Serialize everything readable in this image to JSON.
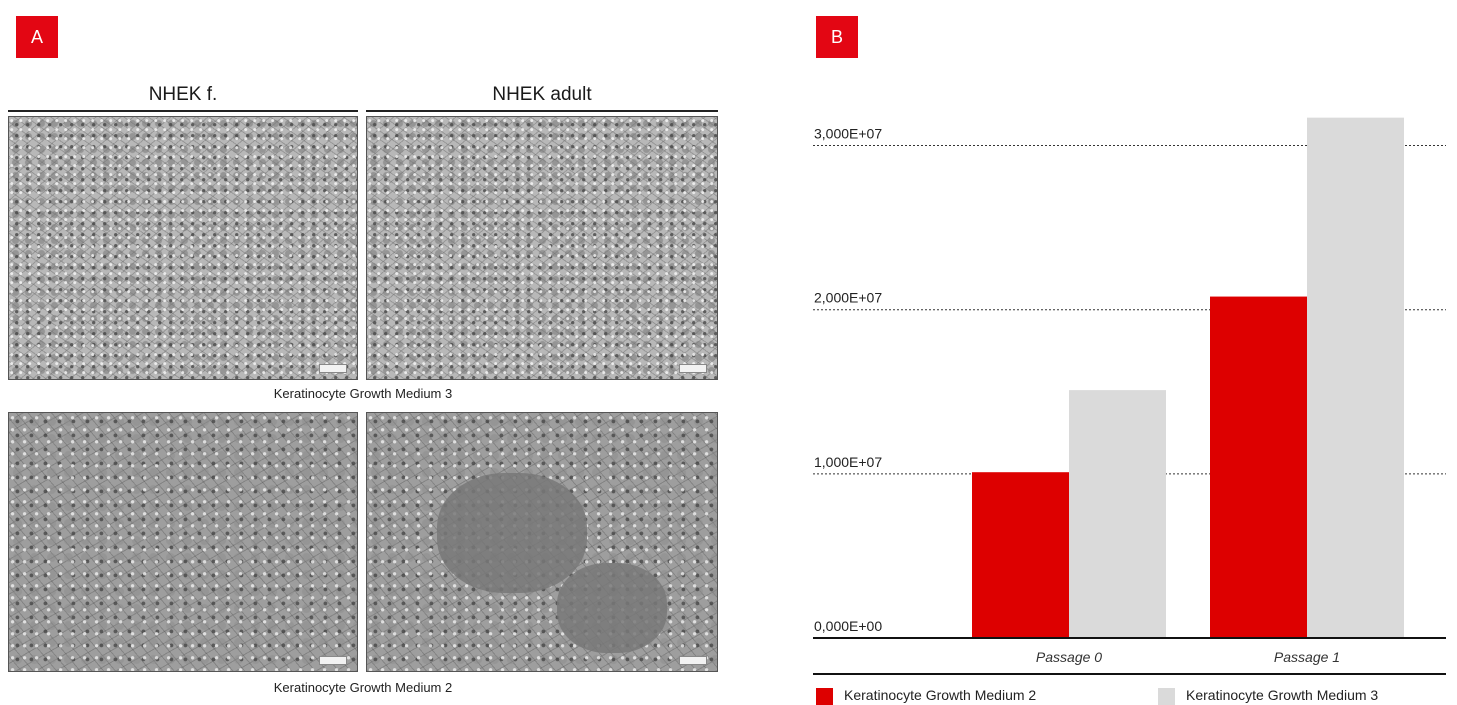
{
  "panel_a": {
    "label": "A",
    "columns": [
      "NHEK f.",
      "NHEK adult"
    ],
    "rows": [
      "Keratinocyte Growth Medium 3",
      "Keratinocyte Growth Medium 2"
    ]
  },
  "panel_b": {
    "label": "B"
  },
  "colors": {
    "accent": "#e30613",
    "series1": "#dd0000",
    "series2": "#dadada"
  },
  "chart_data": {
    "type": "bar",
    "title": "",
    "xlabel": "",
    "ylabel": "",
    "categories": [
      "Passage 0",
      "Passage 1"
    ],
    "series": [
      {
        "name": "Keratinocyte Growth Medium 2",
        "values": [
          10100000,
          20800000
        ]
      },
      {
        "name": "Keratinocyte Growth Medium 3",
        "values": [
          15100000,
          31700000
        ]
      }
    ],
    "ylim": [
      0,
      31800000
    ],
    "yticks": [
      0,
      10000000,
      20000000,
      30000000
    ],
    "ytick_labels": [
      "0,000E+00",
      "1,000E+07",
      "2,000E+07",
      "3,000E+07"
    ],
    "grid": "horizontal dotted",
    "legend_position": "bottom"
  }
}
